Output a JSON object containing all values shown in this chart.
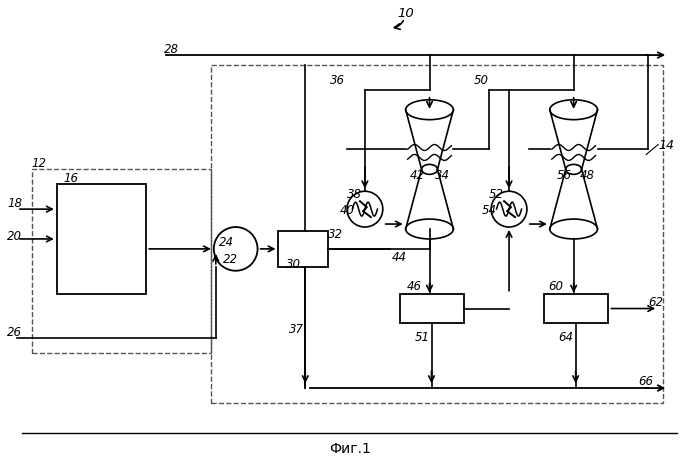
{
  "title": "Фиг.1",
  "label_10": "10",
  "label_12": "12",
  "label_14": "14",
  "label_16": "16",
  "label_18": "18",
  "label_20": "20",
  "label_22": "22",
  "label_24": "24",
  "label_26": "26",
  "label_28": "28",
  "label_30": "30",
  "label_32": "32",
  "label_34": "34",
  "label_36": "36",
  "label_37": "37",
  "label_38": "38",
  "label_40": "40",
  "label_42": "42",
  "label_44": "44",
  "label_46": "46",
  "label_48": "48",
  "label_50": "50",
  "label_51": "51",
  "label_52": "52",
  "label_54": "54",
  "label_56": "56",
  "label_60": "60",
  "label_62": "62",
  "label_64": "64",
  "label_66": "66",
  "bg_color": "#ffffff",
  "line_color": "#000000",
  "dashed_color": "#555555"
}
